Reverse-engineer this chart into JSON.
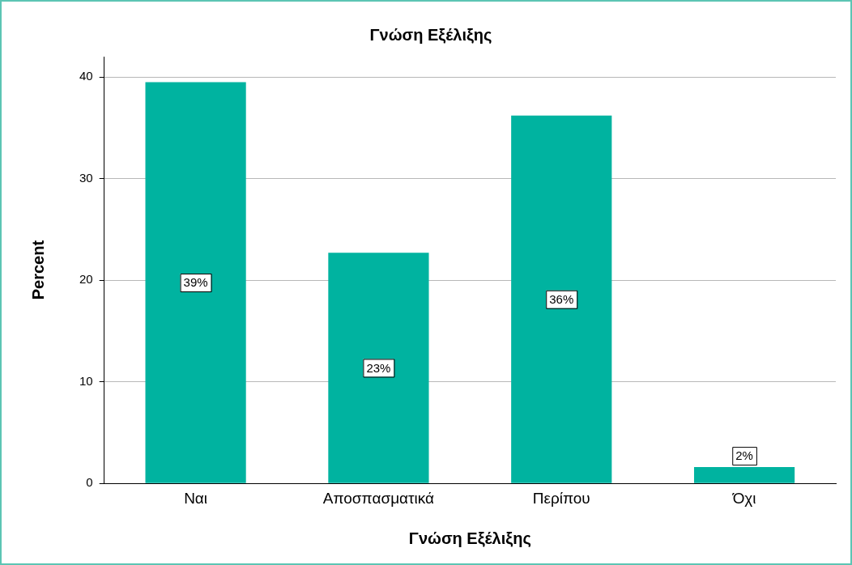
{
  "chart_data": {
    "type": "bar",
    "title": "Γνώση Εξέλιξης",
    "xlabel": "Γνώση Εξέλιξης",
    "ylabel": "Percent",
    "categories": [
      "Ναι",
      "Αποσπασματικά",
      "Περίπου",
      "Όχι"
    ],
    "values": [
      39.5,
      22.7,
      36.2,
      1.6
    ],
    "value_labels": [
      "39%",
      "23%",
      "36%",
      "2%"
    ],
    "color": "#00b3a0",
    "ylim": [
      0,
      42
    ],
    "yticks": [
      0,
      10,
      20,
      30,
      40
    ],
    "grid": "y",
    "legend": false
  }
}
